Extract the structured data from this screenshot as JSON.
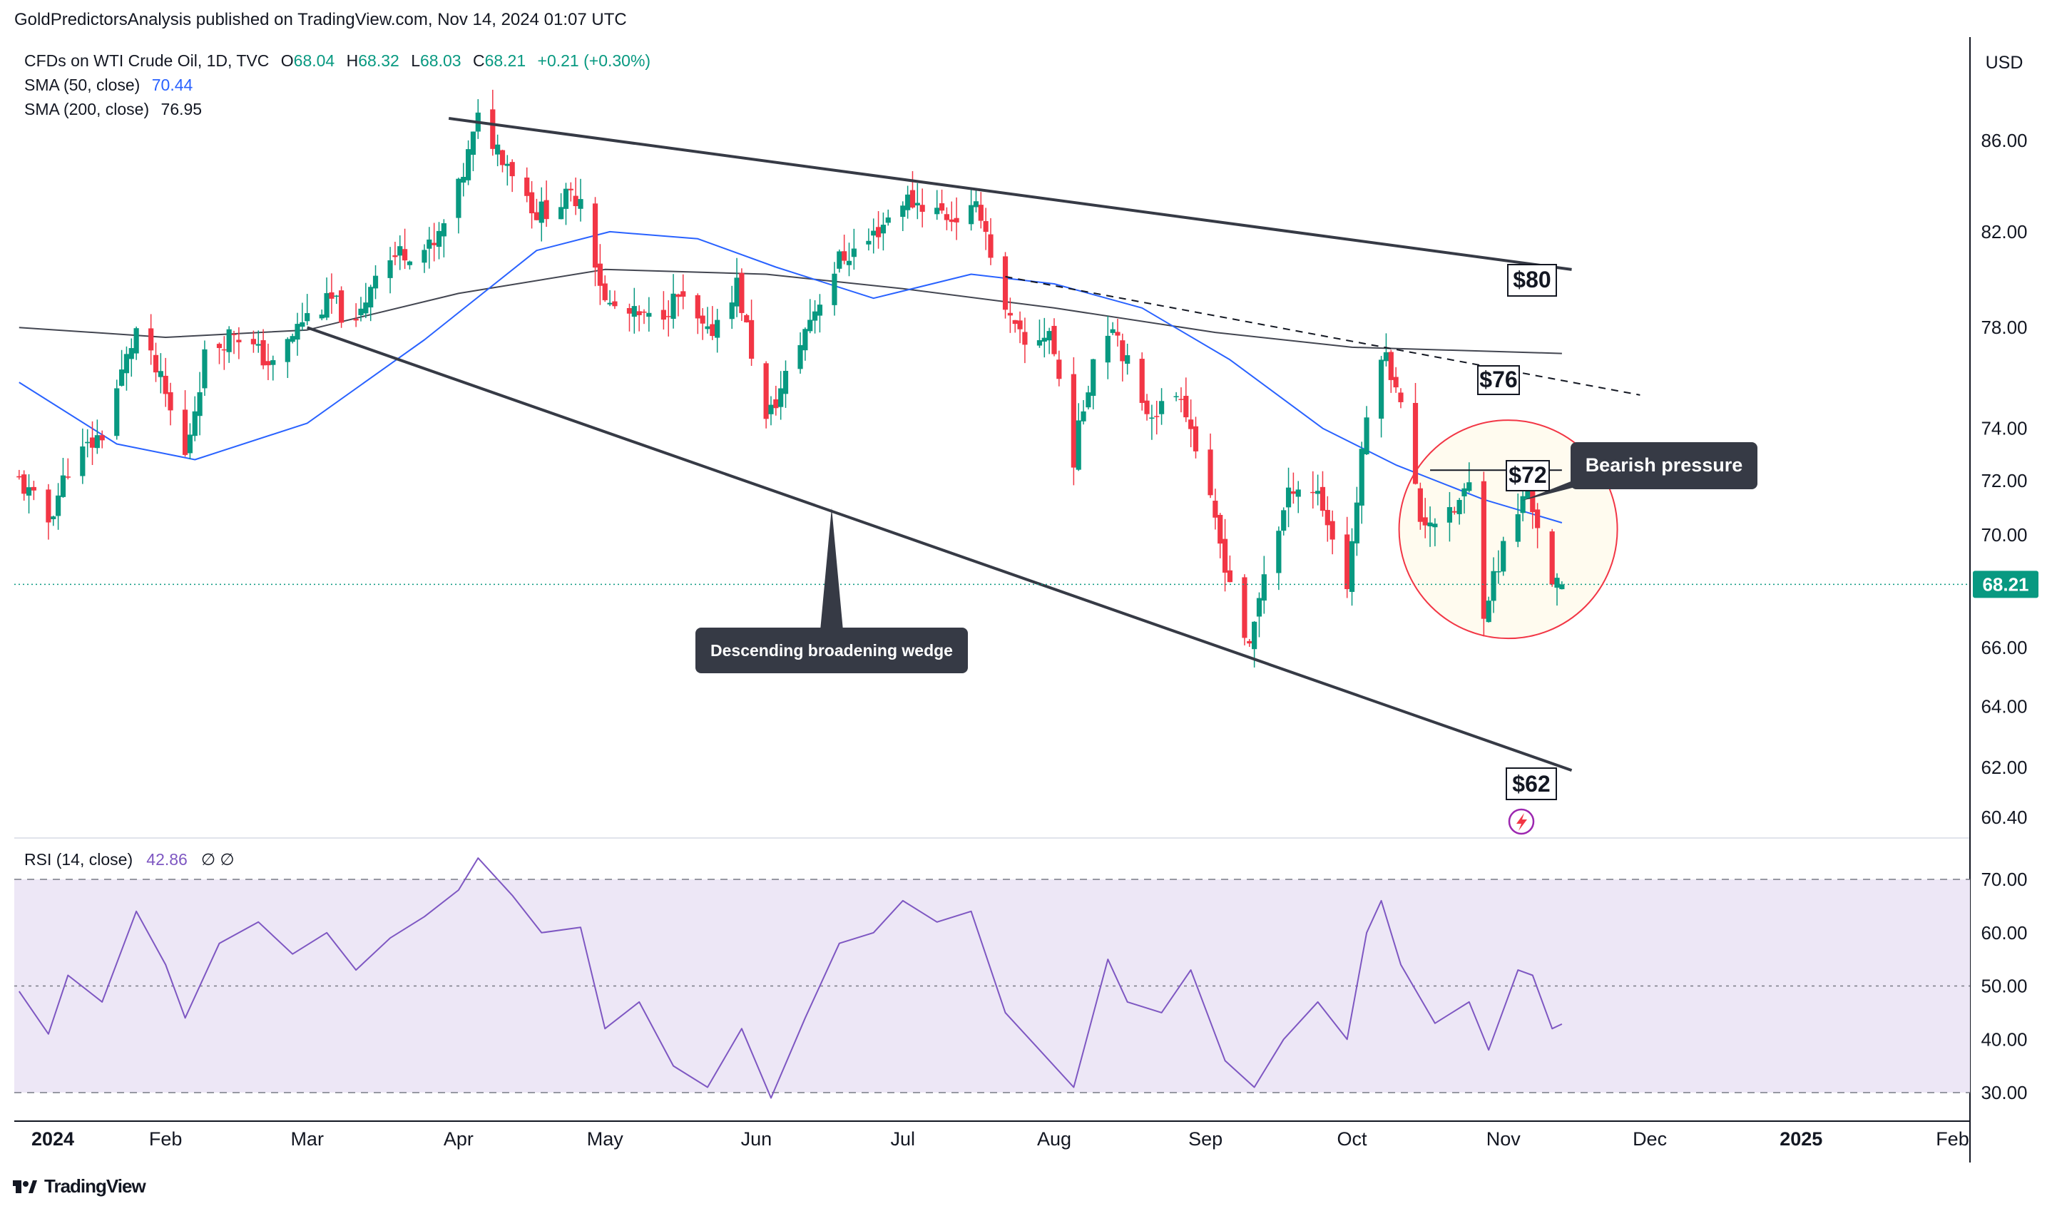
{
  "header": {
    "publisher_line": "GoldPredictorsAnalysis published on TradingView.com, Nov 14, 2024 01:07 UTC"
  },
  "legend": {
    "symbol": "CFDs on WTI Crude Oil, 1D, TVC",
    "open_label": "O",
    "open": "68.04",
    "high_label": "H",
    "high": "68.32",
    "low_label": "L",
    "low": "68.03",
    "close_label": "C",
    "close": "68.21",
    "change": "+0.21 (+0.30%)",
    "sma50_label": "SMA (50, close)",
    "sma50_value": "70.44",
    "sma200_label": "SMA (200, close)",
    "sma200_value": "76.95"
  },
  "currency": "USD",
  "last_price": "68.21",
  "rsi_legend": {
    "label": "RSI (14, close)",
    "value": "42.86",
    "extra": "∅  ∅"
  },
  "footer": {
    "brand": "TradingView"
  },
  "annotations": {
    "wedge_label": "Descending broadening wedge",
    "bearish_label": "Bearish pressure",
    "price_80": "$80",
    "price_76": "$76",
    "price_72": "$72",
    "price_62": "$62"
  },
  "colors": {
    "up": "#089981",
    "down": "#f23645",
    "sma50": "#2962ff",
    "sma200": "#434651",
    "rsi": "#7e57c2",
    "rsi_band": "#ede7f6",
    "callout": "#363a45",
    "circle": "#f23645"
  },
  "chart_data": [
    {
      "type": "candlestick",
      "title": "",
      "x_axis_labels": [
        "2024",
        "Feb",
        "Mar",
        "Apr",
        "May",
        "Jun",
        "Jul",
        "Aug",
        "Sep",
        "Oct",
        "Nov",
        "Dec",
        "2025",
        "Feb"
      ],
      "y_axis_ticks": [
        86.0,
        82.0,
        78.0,
        74.0,
        72.0,
        70.0,
        66.0,
        64.0,
        62.0,
        60.4
      ],
      "y_axis_tick_labels": [
        "86.00",
        "82.00",
        "78.00",
        "74.00",
        "72.00",
        "70.00",
        "66.00",
        "64.00",
        "62.00",
        "60.40"
      ],
      "ylim": [
        60.4,
        86.0
      ],
      "scale": "log",
      "grid": false,
      "anchors": [
        [
          "2024-01-02",
          72.0
        ],
        [
          "2024-01-08",
          70.5
        ],
        [
          "2024-01-12",
          72.5
        ],
        [
          "2024-01-19",
          73.8
        ],
        [
          "2024-01-26",
          77.9
        ],
        [
          "2024-01-31",
          75.8
        ],
        [
          "2024-02-05",
          72.9
        ],
        [
          "2024-02-09",
          76.8
        ],
        [
          "2024-02-15",
          77.9
        ],
        [
          "2024-02-23",
          76.4
        ],
        [
          "2024-02-29",
          78.3
        ],
        [
          "2024-03-06",
          79.1
        ],
        [
          "2024-03-11",
          77.9
        ],
        [
          "2024-03-15",
          80.5
        ],
        [
          "2024-03-21",
          81.2
        ],
        [
          "2024-03-27",
          81.3
        ],
        [
          "2024-04-01",
          83.8
        ],
        [
          "2024-04-05",
          86.9
        ],
        [
          "2024-04-11",
          85.1
        ],
        [
          "2024-04-17",
          82.8
        ],
        [
          "2024-04-23",
          83.4
        ],
        [
          "2024-04-26",
          83.6
        ],
        [
          "2024-05-01",
          79.0
        ],
        [
          "2024-05-06",
          78.5
        ],
        [
          "2024-05-10",
          78.3
        ],
        [
          "2024-05-16",
          79.2
        ],
        [
          "2024-05-22",
          77.6
        ],
        [
          "2024-05-28",
          79.8
        ],
        [
          "2024-06-03",
          74.2
        ],
        [
          "2024-06-06",
          75.5
        ],
        [
          "2024-06-12",
          78.4
        ],
        [
          "2024-06-18",
          80.8
        ],
        [
          "2024-06-24",
          81.6
        ],
        [
          "2024-07-01",
          83.4
        ],
        [
          "2024-07-05",
          83.2
        ],
        [
          "2024-07-11",
          82.6
        ],
        [
          "2024-07-17",
          82.9
        ],
        [
          "2024-07-22",
          78.5
        ],
        [
          "2024-07-26",
          77.2
        ],
        [
          "2024-07-31",
          77.9
        ],
        [
          "2024-08-05",
          72.9
        ],
        [
          "2024-08-09",
          76.8
        ],
        [
          "2024-08-13",
          78.3
        ],
        [
          "2024-08-19",
          74.7
        ],
        [
          "2024-08-23",
          74.8
        ],
        [
          "2024-08-27",
          75.5
        ],
        [
          "2024-09-03",
          70.3
        ],
        [
          "2024-09-10",
          65.8
        ],
        [
          "2024-09-13",
          68.7
        ],
        [
          "2024-09-19",
          71.9
        ],
        [
          "2024-09-24",
          71.6
        ],
        [
          "2024-09-30",
          68.2
        ],
        [
          "2024-10-04",
          74.4
        ],
        [
          "2024-10-07",
          77.1
        ],
        [
          "2024-10-10",
          75.9
        ],
        [
          "2024-10-15",
          70.6
        ],
        [
          "2024-10-21",
          70.6
        ],
        [
          "2024-10-25",
          71.8
        ],
        [
          "2024-10-28",
          67.4
        ],
        [
          "2024-11-01",
          69.5
        ],
        [
          "2024-11-06",
          71.7
        ],
        [
          "2024-11-08",
          70.4
        ],
        [
          "2024-11-11",
          68.0
        ],
        [
          "2024-11-13",
          68.21
        ]
      ],
      "last_ohlc": {
        "open": 68.04,
        "high": 68.32,
        "low": 68.03,
        "close": 68.21
      },
      "series": [
        {
          "name": "SMA (50, close)",
          "last": 70.44,
          "points": [
            [
              "2024-01-02",
              75.8
            ],
            [
              "2024-01-22",
              73.4
            ],
            [
              "2024-02-07",
              72.8
            ],
            [
              "2024-03-01",
              74.2
            ],
            [
              "2024-03-25",
              77.5
            ],
            [
              "2024-04-17",
              81.2
            ],
            [
              "2024-05-02",
              82.0
            ],
            [
              "2024-05-20",
              81.7
            ],
            [
              "2024-06-05",
              80.5
            ],
            [
              "2024-06-25",
              79.2
            ],
            [
              "2024-07-15",
              80.2
            ],
            [
              "2024-08-01",
              79.8
            ],
            [
              "2024-08-19",
              78.8
            ],
            [
              "2024-09-06",
              76.7
            ],
            [
              "2024-09-25",
              74.0
            ],
            [
              "2024-10-10",
              72.6
            ],
            [
              "2024-10-28",
              71.3
            ],
            [
              "2024-11-13",
              70.44
            ]
          ]
        },
        {
          "name": "SMA (200, close)",
          "last": 76.95,
          "points": [
            [
              "2024-01-02",
              78.0
            ],
            [
              "2024-02-01",
              77.6
            ],
            [
              "2024-03-01",
              77.9
            ],
            [
              "2024-04-01",
              79.4
            ],
            [
              "2024-05-01",
              80.4
            ],
            [
              "2024-06-03",
              80.2
            ],
            [
              "2024-07-01",
              79.6
            ],
            [
              "2024-08-01",
              78.8
            ],
            [
              "2024-09-03",
              77.8
            ],
            [
              "2024-10-01",
              77.2
            ],
            [
              "2024-11-13",
              76.95
            ]
          ]
        }
      ],
      "trendlines": [
        {
          "label": "$80",
          "style": "solid",
          "from": [
            "2024-03-30",
            87.0
          ],
          "to": [
            "2024-11-15",
            80.4
          ]
        },
        {
          "label": "$62",
          "style": "solid",
          "from": [
            "2024-03-01",
            78.0
          ],
          "to": [
            "2024-11-15",
            61.9
          ]
        },
        {
          "label": "$76",
          "style": "dashed",
          "from": [
            "2024-07-22",
            80.1
          ],
          "to": [
            "2024-11-29",
            75.3
          ]
        },
        {
          "label": "$72",
          "style": "solid",
          "from": [
            "2024-10-17",
            72.4
          ],
          "to": [
            "2024-11-13",
            72.4
          ]
        }
      ],
      "price_labels": [
        80,
        76,
        72,
        62
      ]
    },
    {
      "type": "line",
      "title": "",
      "series": [
        {
          "name": "RSI (14, close)",
          "last": 42.86,
          "points": [
            [
              "2024-01-02",
              49
            ],
            [
              "2024-01-08",
              41
            ],
            [
              "2024-01-12",
              52
            ],
            [
              "2024-01-19",
              47
            ],
            [
              "2024-01-26",
              64
            ],
            [
              "2024-02-01",
              54
            ],
            [
              "2024-02-05",
              44
            ],
            [
              "2024-02-12",
              58
            ],
            [
              "2024-02-20",
              62
            ],
            [
              "2024-02-27",
              56
            ],
            [
              "2024-03-05",
              60
            ],
            [
              "2024-03-11",
              53
            ],
            [
              "2024-03-18",
              59
            ],
            [
              "2024-03-25",
              63
            ],
            [
              "2024-04-01",
              68
            ],
            [
              "2024-04-05",
              74
            ],
            [
              "2024-04-12",
              67
            ],
            [
              "2024-04-18",
              60
            ],
            [
              "2024-04-26",
              61
            ],
            [
              "2024-05-01",
              42
            ],
            [
              "2024-05-08",
              47
            ],
            [
              "2024-05-15",
              35
            ],
            [
              "2024-05-22",
              31
            ],
            [
              "2024-05-29",
              42
            ],
            [
              "2024-06-04",
              29
            ],
            [
              "2024-06-11",
              44
            ],
            [
              "2024-06-18",
              58
            ],
            [
              "2024-06-25",
              60
            ],
            [
              "2024-07-01",
              66
            ],
            [
              "2024-07-08",
              62
            ],
            [
              "2024-07-15",
              64
            ],
            [
              "2024-07-22",
              45
            ],
            [
              "2024-07-29",
              38
            ],
            [
              "2024-08-05",
              31
            ],
            [
              "2024-08-12",
              55
            ],
            [
              "2024-08-16",
              47
            ],
            [
              "2024-08-23",
              45
            ],
            [
              "2024-08-29",
              53
            ],
            [
              "2024-09-05",
              36
            ],
            [
              "2024-09-11",
              31
            ],
            [
              "2024-09-17",
              40
            ],
            [
              "2024-09-24",
              47
            ],
            [
              "2024-09-30",
              40
            ],
            [
              "2024-10-04",
              60
            ],
            [
              "2024-10-07",
              66
            ],
            [
              "2024-10-11",
              54
            ],
            [
              "2024-10-18",
              43
            ],
            [
              "2024-10-25",
              47
            ],
            [
              "2024-10-29",
              38
            ],
            [
              "2024-11-04",
              53
            ],
            [
              "2024-11-07",
              52
            ],
            [
              "2024-11-11",
              42
            ],
            [
              "2024-11-13",
              42.86
            ]
          ]
        }
      ],
      "y_axis_ticks": [
        70,
        60,
        50,
        40,
        30
      ],
      "y_axis_tick_labels": [
        "70.00",
        "60.00",
        "50.00",
        "40.00",
        "30.00"
      ],
      "ylim": [
        27,
        75
      ],
      "bands": [
        30,
        50,
        70
      ]
    }
  ]
}
